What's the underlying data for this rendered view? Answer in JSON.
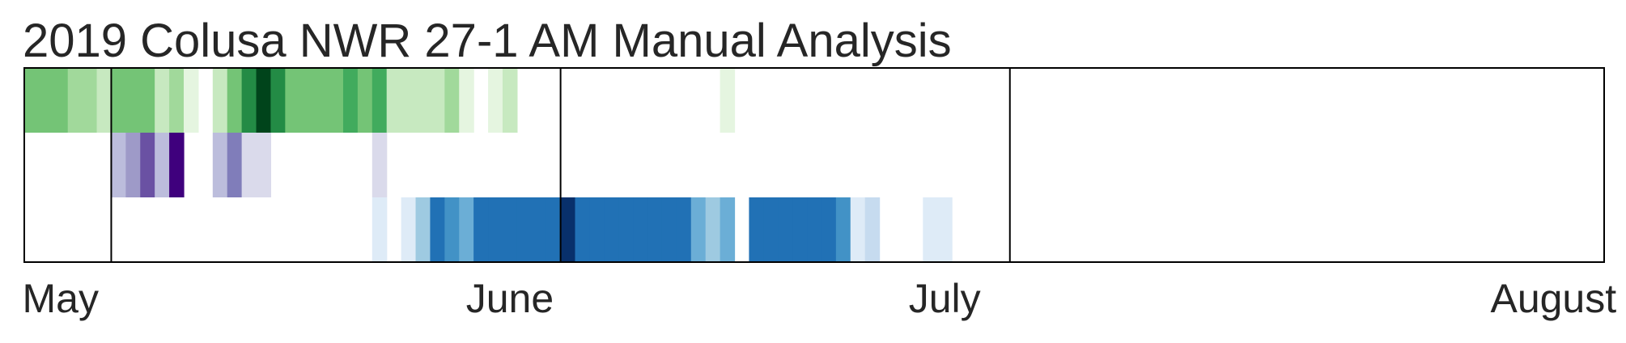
{
  "chart_data": {
    "type": "heatmap",
    "title": "2019 Colusa NWR 27-1 AM Manual Analysis",
    "x_axis": {
      "type": "date",
      "start": "2019-05-01",
      "end": "2019-08-18",
      "tick_labels": [
        {
          "label": "May",
          "date": "2019-05-03"
        },
        {
          "label": "June",
          "date": "2019-06-03"
        },
        {
          "label": "July",
          "date": "2019-07-03"
        },
        {
          "label": "August",
          "date": "2019-08-14"
        }
      ],
      "divider_dates": [
        "2019-05-07",
        "2019-06-07",
        "2019-07-08"
      ]
    },
    "rows": [
      {
        "colormap": "Greens",
        "max": 10,
        "cells": [
          {
            "date": "2019-05-01",
            "value": 5
          },
          {
            "date": "2019-05-02",
            "value": 5
          },
          {
            "date": "2019-05-03",
            "value": 5
          },
          {
            "date": "2019-05-04",
            "value": 4
          },
          {
            "date": "2019-05-05",
            "value": 4
          },
          {
            "date": "2019-05-06",
            "value": 3
          },
          {
            "date": "2019-05-07",
            "value": 5
          },
          {
            "date": "2019-05-08",
            "value": 5
          },
          {
            "date": "2019-05-09",
            "value": 5
          },
          {
            "date": "2019-05-10",
            "value": 3
          },
          {
            "date": "2019-05-11",
            "value": 4
          },
          {
            "date": "2019-05-12",
            "value": 1
          },
          {
            "date": "2019-05-14",
            "value": 3
          },
          {
            "date": "2019-05-15",
            "value": 5
          },
          {
            "date": "2019-05-16",
            "value": 7
          },
          {
            "date": "2019-05-17",
            "value": 10
          },
          {
            "date": "2019-05-18",
            "value": 7
          },
          {
            "date": "2019-05-19",
            "value": 5
          },
          {
            "date": "2019-05-20",
            "value": 5
          },
          {
            "date": "2019-05-21",
            "value": 5
          },
          {
            "date": "2019-05-22",
            "value": 5
          },
          {
            "date": "2019-05-23",
            "value": 6
          },
          {
            "date": "2019-05-24",
            "value": 5
          },
          {
            "date": "2019-05-25",
            "value": 6
          },
          {
            "date": "2019-05-26",
            "value": 2
          },
          {
            "date": "2019-05-27",
            "value": 2
          },
          {
            "date": "2019-05-28",
            "value": 3
          },
          {
            "date": "2019-05-29",
            "value": 3
          },
          {
            "date": "2019-05-30",
            "value": 4
          },
          {
            "date": "2019-05-31",
            "value": 1
          },
          {
            "date": "2019-06-02",
            "value": 1
          },
          {
            "date": "2019-06-03",
            "value": 2
          },
          {
            "date": "2019-06-18",
            "value": 1
          }
        ]
      },
      {
        "colormap": "Purples",
        "max": 10,
        "cells": [
          {
            "date": "2019-05-07",
            "value": 4
          },
          {
            "date": "2019-05-08",
            "value": 5
          },
          {
            "date": "2019-05-09",
            "value": 7
          },
          {
            "date": "2019-05-10",
            "value": 4
          },
          {
            "date": "2019-05-11",
            "value": 10
          },
          {
            "date": "2019-05-14",
            "value": 4
          },
          {
            "date": "2019-05-15",
            "value": 6
          },
          {
            "date": "2019-05-16",
            "value": 2
          },
          {
            "date": "2019-05-17",
            "value": 2
          },
          {
            "date": "2019-05-25",
            "value": 2
          }
        ]
      },
      {
        "colormap": "Blues",
        "max": 10,
        "cells": [
          {
            "date": "2019-05-25",
            "value": 1
          },
          {
            "date": "2019-05-27",
            "value": 1
          },
          {
            "date": "2019-05-28",
            "value": 4
          },
          {
            "date": "2019-05-29",
            "value": 7
          },
          {
            "date": "2019-05-30",
            "value": 6
          },
          {
            "date": "2019-05-31",
            "value": 5
          },
          {
            "date": "2019-06-01",
            "value": 7
          },
          {
            "date": "2019-06-02",
            "value": 7
          },
          {
            "date": "2019-06-03",
            "value": 7
          },
          {
            "date": "2019-06-04",
            "value": 7
          },
          {
            "date": "2019-06-05",
            "value": 7
          },
          {
            "date": "2019-06-06",
            "value": 7
          },
          {
            "date": "2019-06-07",
            "value": 10
          },
          {
            "date": "2019-06-08",
            "value": 7
          },
          {
            "date": "2019-06-09",
            "value": 7
          },
          {
            "date": "2019-06-10",
            "value": 7
          },
          {
            "date": "2019-06-11",
            "value": 7
          },
          {
            "date": "2019-06-12",
            "value": 7
          },
          {
            "date": "2019-06-13",
            "value": 7
          },
          {
            "date": "2019-06-14",
            "value": 7
          },
          {
            "date": "2019-06-15",
            "value": 7
          },
          {
            "date": "2019-06-16",
            "value": 5
          },
          {
            "date": "2019-06-17",
            "value": 4
          },
          {
            "date": "2019-06-18",
            "value": 5
          },
          {
            "date": "2019-06-20",
            "value": 7
          },
          {
            "date": "2019-06-21",
            "value": 7
          },
          {
            "date": "2019-06-22",
            "value": 7
          },
          {
            "date": "2019-06-23",
            "value": 7
          },
          {
            "date": "2019-06-24",
            "value": 7
          },
          {
            "date": "2019-06-25",
            "value": 7
          },
          {
            "date": "2019-06-26",
            "value": 6
          },
          {
            "date": "2019-06-27",
            "value": 1
          },
          {
            "date": "2019-06-28",
            "value": 3
          },
          {
            "date": "2019-07-02",
            "value": 1
          },
          {
            "date": "2019-07-03",
            "value": 1
          }
        ]
      }
    ],
    "colors": {
      "Greens": [
        "#f7fcf5",
        "#e5f5e0",
        "#c7e9c0",
        "#a1d99b",
        "#74c476",
        "#41ab5d",
        "#238b45",
        "#006d2c",
        "#00441b"
      ],
      "Purples": [
        "#fcfbfd",
        "#efedf5",
        "#dadaeb",
        "#bcbddc",
        "#9e9ac8",
        "#807dba",
        "#6a51a3",
        "#54278f",
        "#3f007d"
      ],
      "Blues": [
        "#f7fbff",
        "#deebf7",
        "#c6dbef",
        "#9ecae1",
        "#6baed6",
        "#4292c6",
        "#2171b5",
        "#08519c",
        "#08306b"
      ]
    },
    "grid": false,
    "legend": "none"
  }
}
